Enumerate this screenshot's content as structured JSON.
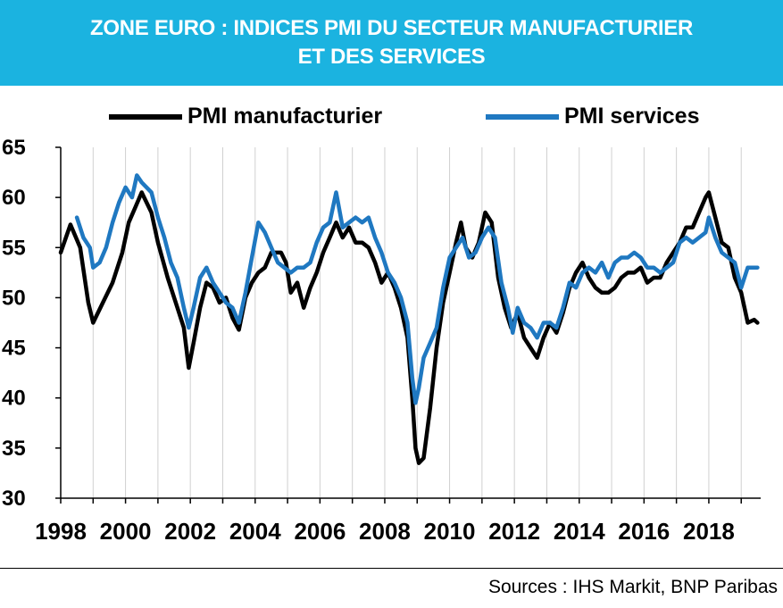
{
  "header": {
    "line1": "ZONE EURO : INDICES PMI DU SECTEUR MANUFACTURIER",
    "line2": "ET DES SERVICES",
    "background": "#1bb3e0"
  },
  "legend": [
    {
      "label": "PMI manufacturier",
      "color": "#000000"
    },
    {
      "label": "PMI services",
      "color": "#1f78c1"
    }
  ],
  "footer": {
    "source": "Sources : IHS Markit, BNP Paribas"
  },
  "chart_data": {
    "type": "line",
    "title": "ZONE EURO : INDICES PMI DU SECTEUR MANUFACTURIER ET DES SERVICES",
    "xlim": [
      1998,
      2019.6
    ],
    "ylim": [
      30,
      65
    ],
    "x_ticks": [
      "1998",
      "2000",
      "2002",
      "2004",
      "2006",
      "2008",
      "2010",
      "2012",
      "2014",
      "2016",
      "2018"
    ],
    "y_ticks": [
      "30",
      "35",
      "40",
      "45",
      "50",
      "55",
      "60",
      "65"
    ],
    "grid": "vertical",
    "legend_position": "top",
    "series": [
      {
        "name": "PMI manufacturier",
        "color": "#000000",
        "points": [
          [
            1998.0,
            54.5
          ],
          [
            1998.3,
            57.3
          ],
          [
            1998.6,
            55.0
          ],
          [
            1998.85,
            49.5
          ],
          [
            1999.0,
            47.5
          ],
          [
            1999.3,
            49.5
          ],
          [
            1999.6,
            51.5
          ],
          [
            1999.9,
            54.5
          ],
          [
            2000.1,
            57.5
          ],
          [
            2000.3,
            59.0
          ],
          [
            2000.5,
            60.5
          ],
          [
            2000.8,
            58.5
          ],
          [
            2001.0,
            55.5
          ],
          [
            2001.3,
            52.0
          ],
          [
            2001.6,
            49.0
          ],
          [
            2001.8,
            47.0
          ],
          [
            2001.95,
            43.0
          ],
          [
            2002.1,
            45.5
          ],
          [
            2002.3,
            49.0
          ],
          [
            2002.5,
            51.5
          ],
          [
            2002.7,
            51.0
          ],
          [
            2002.9,
            49.5
          ],
          [
            2003.1,
            50.0
          ],
          [
            2003.3,
            48.0
          ],
          [
            2003.5,
            46.8
          ],
          [
            2003.7,
            50.0
          ],
          [
            2003.9,
            51.5
          ],
          [
            2004.1,
            52.5
          ],
          [
            2004.3,
            53.0
          ],
          [
            2004.5,
            54.5
          ],
          [
            2004.8,
            54.5
          ],
          [
            2004.95,
            53.5
          ],
          [
            2005.1,
            50.5
          ],
          [
            2005.3,
            51.5
          ],
          [
            2005.5,
            49.0
          ],
          [
            2005.7,
            51.0
          ],
          [
            2005.9,
            52.5
          ],
          [
            2006.1,
            54.5
          ],
          [
            2006.3,
            56.0
          ],
          [
            2006.5,
            57.5
          ],
          [
            2006.7,
            56.0
          ],
          [
            2006.9,
            57.0
          ],
          [
            2007.1,
            55.5
          ],
          [
            2007.3,
            55.5
          ],
          [
            2007.5,
            55.0
          ],
          [
            2007.7,
            53.5
          ],
          [
            2007.9,
            51.5
          ],
          [
            2008.1,
            52.5
          ],
          [
            2008.3,
            51.0
          ],
          [
            2008.5,
            49.0
          ],
          [
            2008.7,
            46.0
          ],
          [
            2008.85,
            40.0
          ],
          [
            2008.95,
            35.0
          ],
          [
            2009.05,
            33.5
          ],
          [
            2009.2,
            34.0
          ],
          [
            2009.4,
            39.0
          ],
          [
            2009.6,
            45.0
          ],
          [
            2009.8,
            49.5
          ],
          [
            2010.0,
            52.5
          ],
          [
            2010.2,
            55.5
          ],
          [
            2010.35,
            57.5
          ],
          [
            2010.5,
            55.0
          ],
          [
            2010.7,
            54.0
          ],
          [
            2010.9,
            55.5
          ],
          [
            2011.1,
            58.5
          ],
          [
            2011.3,
            57.5
          ],
          [
            2011.5,
            52.0
          ],
          [
            2011.7,
            49.0
          ],
          [
            2011.9,
            47.0
          ],
          [
            2012.1,
            48.5
          ],
          [
            2012.3,
            46.0
          ],
          [
            2012.5,
            45.0
          ],
          [
            2012.7,
            44.0
          ],
          [
            2012.9,
            46.0
          ],
          [
            2013.1,
            47.5
          ],
          [
            2013.3,
            46.5
          ],
          [
            2013.5,
            48.5
          ],
          [
            2013.7,
            51.0
          ],
          [
            2013.9,
            52.5
          ],
          [
            2014.1,
            53.5
          ],
          [
            2014.3,
            52.0
          ],
          [
            2014.5,
            51.0
          ],
          [
            2014.7,
            50.5
          ],
          [
            2014.9,
            50.5
          ],
          [
            2015.1,
            51.0
          ],
          [
            2015.3,
            52.0
          ],
          [
            2015.5,
            52.5
          ],
          [
            2015.7,
            52.5
          ],
          [
            2015.9,
            53.0
          ],
          [
            2016.1,
            51.5
          ],
          [
            2016.3,
            52.0
          ],
          [
            2016.5,
            52.0
          ],
          [
            2016.7,
            53.5
          ],
          [
            2016.9,
            54.5
          ],
          [
            2017.1,
            55.5
          ],
          [
            2017.3,
            57.0
          ],
          [
            2017.5,
            57.0
          ],
          [
            2017.7,
            58.5
          ],
          [
            2017.9,
            60.0
          ],
          [
            2018.0,
            60.5
          ],
          [
            2018.2,
            58.0
          ],
          [
            2018.4,
            55.5
          ],
          [
            2018.6,
            55.0
          ],
          [
            2018.8,
            52.0
          ],
          [
            2019.0,
            50.5
          ],
          [
            2019.2,
            47.5
          ],
          [
            2019.4,
            47.8
          ],
          [
            2019.5,
            47.5
          ]
        ]
      },
      {
        "name": "PMI services",
        "color": "#1f78c1",
        "points": [
          [
            1998.5,
            58.0
          ],
          [
            1998.7,
            56.0
          ],
          [
            1998.9,
            55.0
          ],
          [
            1999.0,
            53.0
          ],
          [
            1999.2,
            53.5
          ],
          [
            1999.4,
            55.0
          ],
          [
            1999.6,
            57.5
          ],
          [
            1999.8,
            59.5
          ],
          [
            2000.0,
            61.0
          ],
          [
            2000.2,
            60.0
          ],
          [
            2000.35,
            62.2
          ],
          [
            2000.5,
            61.5
          ],
          [
            2000.8,
            60.5
          ],
          [
            2001.0,
            58.0
          ],
          [
            2001.2,
            56.0
          ],
          [
            2001.4,
            53.5
          ],
          [
            2001.6,
            52.0
          ],
          [
            2001.8,
            49.0
          ],
          [
            2001.95,
            47.0
          ],
          [
            2002.1,
            49.0
          ],
          [
            2002.3,
            52.0
          ],
          [
            2002.5,
            53.0
          ],
          [
            2002.7,
            51.5
          ],
          [
            2002.9,
            50.5
          ],
          [
            2003.1,
            49.5
          ],
          [
            2003.3,
            49.0
          ],
          [
            2003.5,
            47.5
          ],
          [
            2003.7,
            50.5
          ],
          [
            2003.9,
            54.0
          ],
          [
            2004.1,
            57.5
          ],
          [
            2004.3,
            56.5
          ],
          [
            2004.5,
            55.0
          ],
          [
            2004.7,
            53.5
          ],
          [
            2004.9,
            53.0
          ],
          [
            2005.1,
            52.5
          ],
          [
            2005.3,
            53.0
          ],
          [
            2005.5,
            53.0
          ],
          [
            2005.7,
            53.5
          ],
          [
            2005.9,
            55.5
          ],
          [
            2006.1,
            57.0
          ],
          [
            2006.3,
            57.5
          ],
          [
            2006.5,
            60.5
          ],
          [
            2006.7,
            57.0
          ],
          [
            2006.9,
            57.5
          ],
          [
            2007.1,
            58.0
          ],
          [
            2007.3,
            57.5
          ],
          [
            2007.5,
            58.0
          ],
          [
            2007.7,
            56.0
          ],
          [
            2007.9,
            54.5
          ],
          [
            2008.1,
            52.5
          ],
          [
            2008.3,
            51.5
          ],
          [
            2008.5,
            50.0
          ],
          [
            2008.7,
            47.5
          ],
          [
            2008.85,
            42.0
          ],
          [
            2008.95,
            39.5
          ],
          [
            2009.05,
            41.0
          ],
          [
            2009.2,
            44.0
          ],
          [
            2009.4,
            45.5
          ],
          [
            2009.6,
            47.0
          ],
          [
            2009.8,
            51.0
          ],
          [
            2010.0,
            54.0
          ],
          [
            2010.2,
            55.0
          ],
          [
            2010.4,
            56.0
          ],
          [
            2010.6,
            54.0
          ],
          [
            2010.8,
            54.5
          ],
          [
            2011.0,
            56.0
          ],
          [
            2011.2,
            57.0
          ],
          [
            2011.4,
            56.0
          ],
          [
            2011.6,
            51.5
          ],
          [
            2011.8,
            49.0
          ],
          [
            2011.95,
            46.5
          ],
          [
            2012.1,
            49.0
          ],
          [
            2012.3,
            47.5
          ],
          [
            2012.5,
            47.0
          ],
          [
            2012.7,
            46.0
          ],
          [
            2012.9,
            47.5
          ],
          [
            2013.1,
            47.5
          ],
          [
            2013.3,
            47.0
          ],
          [
            2013.5,
            49.0
          ],
          [
            2013.7,
            51.5
          ],
          [
            2013.9,
            51.0
          ],
          [
            2014.1,
            52.5
          ],
          [
            2014.3,
            53.0
          ],
          [
            2014.5,
            52.5
          ],
          [
            2014.7,
            53.5
          ],
          [
            2014.9,
            52.0
          ],
          [
            2015.1,
            53.5
          ],
          [
            2015.3,
            54.0
          ],
          [
            2015.5,
            54.0
          ],
          [
            2015.7,
            54.5
          ],
          [
            2015.9,
            54.0
          ],
          [
            2016.1,
            53.0
          ],
          [
            2016.3,
            53.0
          ],
          [
            2016.5,
            52.5
          ],
          [
            2016.7,
            53.0
          ],
          [
            2016.9,
            53.5
          ],
          [
            2017.1,
            55.5
          ],
          [
            2017.3,
            56.0
          ],
          [
            2017.5,
            55.5
          ],
          [
            2017.7,
            56.0
          ],
          [
            2017.9,
            56.5
          ],
          [
            2018.0,
            58.0
          ],
          [
            2018.2,
            56.0
          ],
          [
            2018.4,
            54.5
          ],
          [
            2018.6,
            54.0
          ],
          [
            2018.8,
            53.5
          ],
          [
            2019.0,
            51.0
          ],
          [
            2019.2,
            53.0
          ],
          [
            2019.4,
            53.0
          ],
          [
            2019.5,
            53.0
          ]
        ]
      }
    ]
  }
}
